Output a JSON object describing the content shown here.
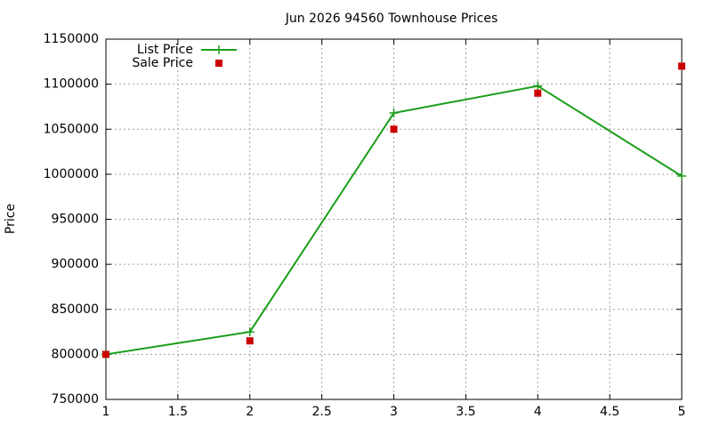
{
  "chart_data": {
    "type": "line",
    "title": "Jun 2026 94560 Townhouse Prices",
    "y_label": "Price",
    "x": [
      1,
      2,
      3,
      4,
      5
    ],
    "series": [
      {
        "name": "List Price",
        "color": "#1a9e1a",
        "marker": "plus",
        "values": [
          800000,
          825000,
          1068000,
          1098000,
          998000
        ]
      },
      {
        "name": "Sale Price",
        "color": "#cc0000",
        "marker": "square",
        "line": false,
        "values": [
          800000,
          815000,
          1050000,
          1090000,
          1120000
        ]
      }
    ],
    "xlim": [
      1,
      5
    ],
    "xticks": [
      1,
      1.5,
      2,
      2.5,
      3,
      3.5,
      4,
      4.5,
      5
    ],
    "ylim": [
      750000,
      1150000
    ],
    "yticks": [
      750000,
      800000,
      850000,
      900000,
      950000,
      1000000,
      1050000,
      1100000,
      1150000
    ],
    "grid": true,
    "legend": "top-left"
  }
}
